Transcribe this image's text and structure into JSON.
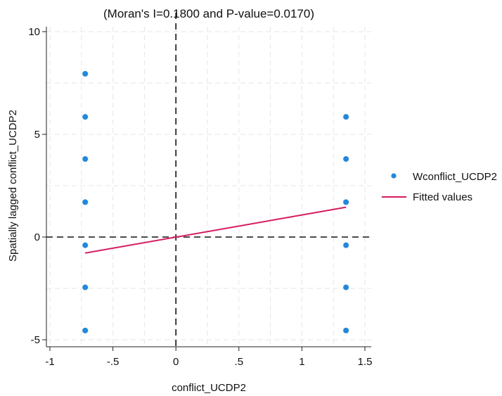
{
  "chart_data": {
    "type": "scatter",
    "title": "(Moran's I=0.1800 and P-value=0.0170)",
    "xlabel": "conflict_UCDP2",
    "ylabel": "Spatially lagged conflict_UCDP2",
    "xlim": [
      -1.0,
      1.5
    ],
    "ylim": [
      -5.0,
      10.0
    ],
    "xticks": [
      -1,
      -0.5,
      0,
      0.5,
      1,
      1.5
    ],
    "xtick_labels": [
      "-1",
      "-.5",
      "0",
      ".5",
      "1",
      "1.5"
    ],
    "yticks": [
      -5,
      0,
      5,
      10
    ],
    "ytick_labels": [
      "-5",
      "0",
      "5",
      "10"
    ],
    "grid": true,
    "legend_position": "right",
    "reference_lines": {
      "x": 0,
      "y": 0
    },
    "series": [
      {
        "name": "Wconflict_UCDP2",
        "kind": "scatter",
        "color": "#1e88e5",
        "points": [
          [
            -0.72,
            7.95
          ],
          [
            -0.72,
            5.85
          ],
          [
            -0.72,
            3.8
          ],
          [
            -0.72,
            1.7
          ],
          [
            -0.72,
            -0.4
          ],
          [
            -0.72,
            -2.45
          ],
          [
            -0.72,
            -4.55
          ],
          [
            1.35,
            5.85
          ],
          [
            1.35,
            3.8
          ],
          [
            1.35,
            1.7
          ],
          [
            1.35,
            -0.4
          ],
          [
            1.35,
            -2.45
          ],
          [
            1.35,
            -4.55
          ]
        ]
      },
      {
        "name": "Fitted values",
        "kind": "line",
        "color": "#d81b60",
        "points": [
          [
            -0.72,
            -0.78
          ],
          [
            1.35,
            1.45
          ]
        ]
      }
    ]
  }
}
